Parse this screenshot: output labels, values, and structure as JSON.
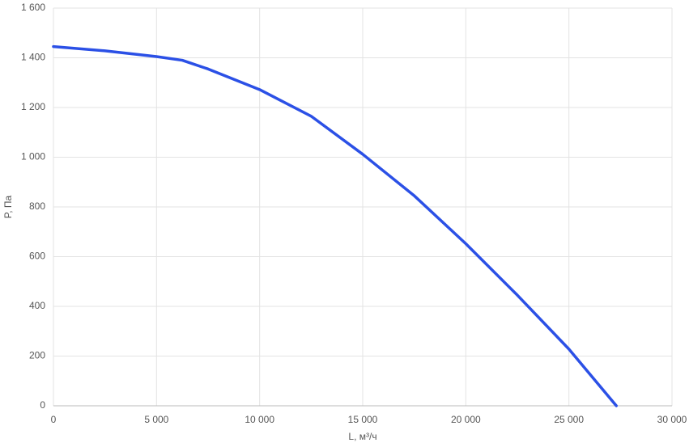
{
  "chart_data": {
    "type": "line",
    "x_label": "L, м³/ч",
    "y_label": "P, Па",
    "x": [
      0,
      2500,
      5000,
      6250,
      7500,
      10000,
      12500,
      15000,
      17500,
      20000,
      22500,
      25000,
      27300
    ],
    "series": [
      {
        "color": "#2b50e6",
        "values": [
          1445,
          1428,
          1405,
          1390,
          1355,
          1272,
          1165,
          1012,
          845,
          652,
          445,
          228,
          0
        ]
      }
    ],
    "xlim": [
      0,
      30000
    ],
    "xticks": [
      0,
      {
        "value": 5000,
        "label": "5 000"
      },
      {
        "value": 10000,
        "label": "10 000"
      },
      {
        "value": 15000,
        "label": "15 000"
      },
      {
        "value": 20000,
        "label": "20 000"
      },
      {
        "value": 25000,
        "label": "25 000"
      },
      {
        "value": 30000,
        "label": "30 000"
      }
    ],
    "ylim": [
      0,
      1600
    ],
    "yticks": [
      0,
      200,
      400,
      600,
      800,
      {
        "value": 1000,
        "label": "1 000"
      },
      {
        "value": 1200,
        "label": "1 200"
      },
      {
        "value": 1400,
        "label": "1 400"
      },
      {
        "value": 1600,
        "label": "1 600"
      }
    ],
    "grid": true
  }
}
